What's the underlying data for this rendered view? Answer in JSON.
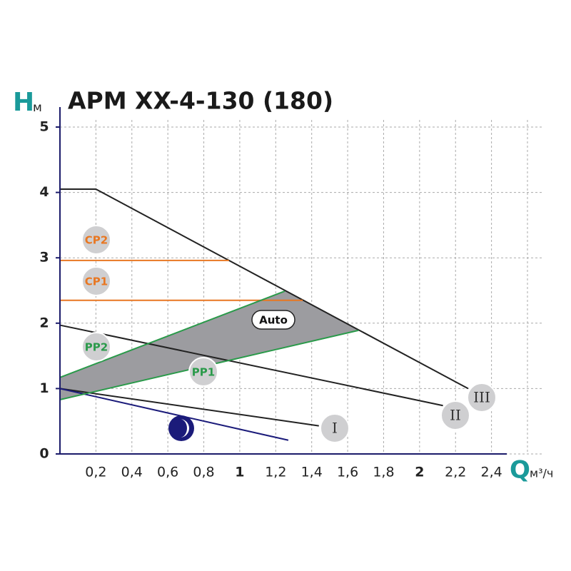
{
  "chart_data": {
    "type": "line",
    "title": "APM XX-4-130 (180)",
    "y_label": "H",
    "y_unit": "м",
    "x_label": "Q",
    "x_unit": "м³/ч",
    "xlim": [
      0,
      2.6
    ],
    "ylim": [
      0,
      5
    ],
    "xticks": [
      {
        "value": 0.2,
        "label": "0,2"
      },
      {
        "value": 0.4,
        "label": "0,4"
      },
      {
        "value": 0.6,
        "label": "0,6"
      },
      {
        "value": 0.8,
        "label": "0,8"
      },
      1,
      {
        "value": 1.2,
        "label": "1,2"
      },
      {
        "value": 1.4,
        "label": "1,4"
      },
      {
        "value": 1.6,
        "label": "1,6"
      },
      {
        "value": 1.8,
        "label": "1,8"
      },
      2,
      {
        "value": 2.2,
        "label": "2,2"
      },
      {
        "value": 2.4,
        "label": "2,4"
      }
    ],
    "yticks": [
      0,
      1,
      2,
      3,
      4,
      5
    ],
    "grid": true,
    "series": [
      {
        "name": "Auto",
        "color": "#9c9ca0",
        "fill": true,
        "x": [
          0,
          1.66,
          1.25,
          0
        ],
        "values": [
          0.83,
          1.89,
          2.5,
          1.17
        ]
      },
      {
        "name": "III",
        "color": "#222222",
        "x": [
          0,
          0.2,
          2.27
        ],
        "values": [
          4.05,
          4.05,
          1.0
        ]
      },
      {
        "name": "II",
        "color": "#222222",
        "x": [
          0,
          2.13
        ],
        "values": [
          1.97,
          0.74
        ]
      },
      {
        "name": "I",
        "color": "#222222",
        "x": [
          0,
          1.44
        ],
        "values": [
          1.0,
          0.43
        ]
      },
      {
        "color": "#1b1b7a",
        "x": [
          0,
          1.27
        ],
        "values": [
          1.0,
          0.21
        ]
      },
      {
        "name": "CP2",
        "color": "#e87722",
        "x": [
          0,
          0.94
        ],
        "values": [
          2.96,
          2.96
        ]
      },
      {
        "name": "CP1",
        "color": "#e87722",
        "x": [
          0,
          1.35
        ],
        "values": [
          2.35,
          2.35
        ]
      },
      {
        "name": "PP2",
        "color": "#2a9a4a",
        "x": [
          0,
          1.25
        ],
        "values": [
          1.17,
          2.49
        ]
      },
      {
        "name": "PP1",
        "color": "#2a9a4a",
        "x": [
          0,
          1.66
        ],
        "values": [
          0.83,
          1.89
        ]
      }
    ]
  }
}
